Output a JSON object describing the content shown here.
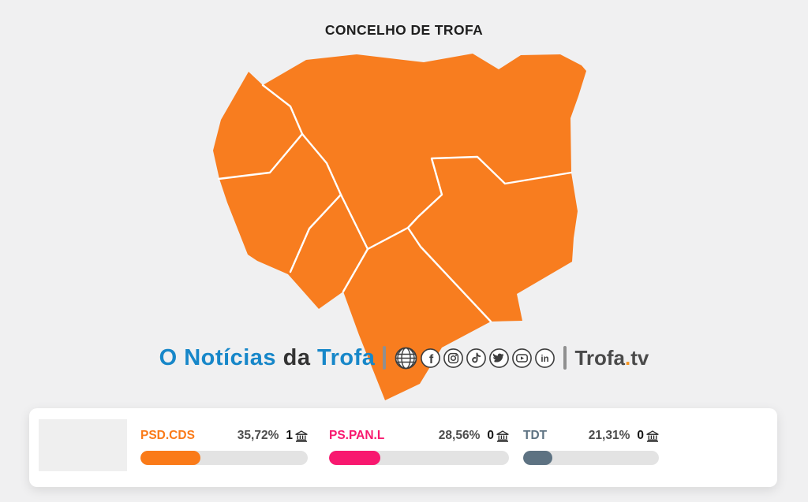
{
  "page_bg": "#F0F0F1",
  "title": "CONCELHO DE TROFA",
  "map": {
    "region": "Concelho de Trofa",
    "fill": "#F87D1F",
    "boundary": "#FFFFFF"
  },
  "brand": {
    "logo": {
      "part1": "O Notícias",
      "part2": "da",
      "part3": "Trofa",
      "blue": "#1787C9",
      "dark": "#333333"
    },
    "separator": "|",
    "social_icons": [
      "website",
      "facebook",
      "instagram",
      "tiktok",
      "twitter",
      "youtube",
      "linkedin"
    ],
    "tv": {
      "name": "Trofa",
      "dot": ".",
      "suffix": "tv",
      "dot_color": "#F7941D",
      "text_color": "#4A4A4A"
    }
  },
  "results": {
    "track_color": "#E3E3E3",
    "parties": [
      {
        "name": "PSD.CDS",
        "color": "#FA7A18",
        "percent": "35,72%",
        "percent_value": 35.72,
        "seats": "1"
      },
      {
        "name": "PS.PAN.L",
        "color": "#F8186F",
        "percent": "28,56%",
        "percent_value": 28.56,
        "seats": "0"
      },
      {
        "name": "TDT",
        "color": "#5D7282",
        "percent": "21,31%",
        "percent_value": 21.31,
        "seats": "0"
      }
    ]
  },
  "chart_data": {
    "type": "bar",
    "title": "CONCELHO DE TROFA",
    "categories": [
      "PSD.CDS",
      "PS.PAN.L",
      "TDT"
    ],
    "values": [
      35.72,
      28.56,
      21.31
    ],
    "value_labels": [
      "35,72%",
      "28,56%",
      "21,31%"
    ],
    "seats": [
      1,
      0,
      0
    ],
    "colors": [
      "#FA7A18",
      "#F8186F",
      "#5D7282"
    ],
    "ylim": [
      0,
      100
    ],
    "legend_position": "none"
  }
}
